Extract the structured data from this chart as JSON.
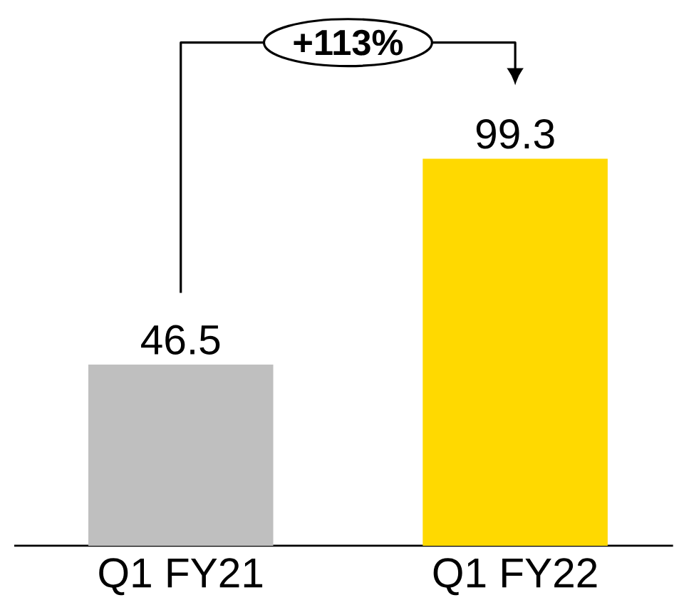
{
  "chart_data": {
    "type": "bar",
    "categories": [
      "Q1 FY21",
      "Q1 FY22"
    ],
    "values": [
      46.5,
      99.3
    ],
    "colors": [
      "#bfbfbf",
      "#ffd900"
    ],
    "data_labels": true,
    "annotations": [
      "+113%"
    ]
  }
}
